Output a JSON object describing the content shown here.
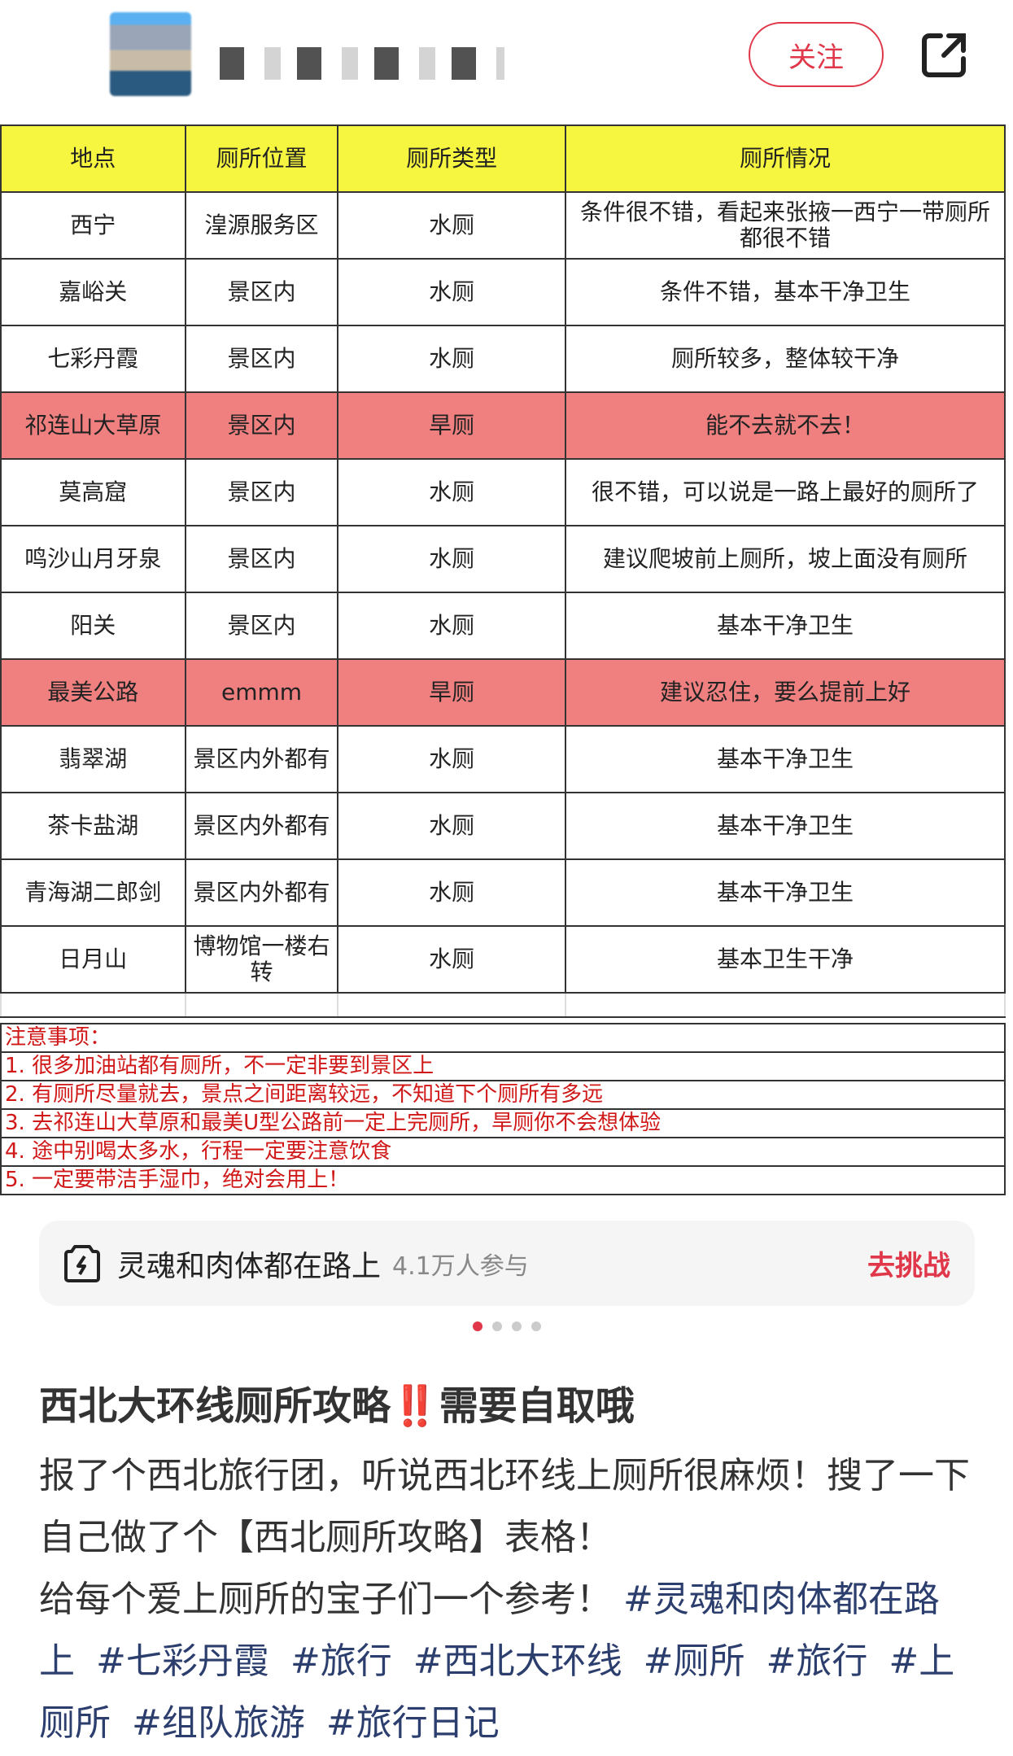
{
  "header": {
    "follow_label": "关注",
    "avatar_icon": "avatar-icon",
    "share_icon": "share-icon"
  },
  "table": {
    "headers": [
      "地点",
      "厕所位置",
      "厕所类型",
      "厕所情况"
    ],
    "header_color": "#f6f640",
    "highlight_color": "#f08080",
    "rows": [
      {
        "place": "西宁",
        "location": "湟源服务区",
        "type": "水厕",
        "condition": "条件很不错，看起来张掖一西宁一带厕所都很不错",
        "highlight": false
      },
      {
        "place": "嘉峪关",
        "location": "景区内",
        "type": "水厕",
        "condition": "条件不错，基本干净卫生",
        "highlight": false
      },
      {
        "place": "七彩丹霞",
        "location": "景区内",
        "type": "水厕",
        "condition": "厕所较多，整体较干净",
        "highlight": false
      },
      {
        "place": "祁连山大草原",
        "location": "景区内",
        "type": "旱厕",
        "condition": "能不去就不去！",
        "highlight": true
      },
      {
        "place": "莫高窟",
        "location": "景区内",
        "type": "水厕",
        "condition": "很不错，可以说是一路上最好的厕所了",
        "highlight": false
      },
      {
        "place": "鸣沙山月牙泉",
        "location": "景区内",
        "type": "水厕",
        "condition": "建议爬坡前上厕所，坡上面没有厕所",
        "highlight": false
      },
      {
        "place": "阳关",
        "location": "景区内",
        "type": "水厕",
        "condition": "基本干净卫生",
        "highlight": false
      },
      {
        "place": "最美公路",
        "location": "emmm",
        "type": "旱厕",
        "condition": "建议忍住，要么提前上好",
        "highlight": true
      },
      {
        "place": "翡翠湖",
        "location": "景区内外都有",
        "type": "水厕",
        "condition": "基本干净卫生",
        "highlight": false
      },
      {
        "place": "茶卡盐湖",
        "location": "景区内外都有",
        "type": "水厕",
        "condition": "基本干净卫生",
        "highlight": false
      },
      {
        "place": "青海湖二郎剑",
        "location": "景区内外都有",
        "type": "水厕",
        "condition": "基本干净卫生",
        "highlight": false
      },
      {
        "place": "日月山",
        "location": "博物馆一楼右转",
        "type": "水厕",
        "condition": "基本卫生干净",
        "highlight": false
      }
    ]
  },
  "notes": [
    "注意事项：",
    "1. 很多加油站都有厕所，不一定非要到景区上",
    "2. 有厕所尽量就去，景点之间距离较远，不知道下个厕所有多远",
    "3. 去祁连山大草原和最美U型公路前一定上完厕所，旱厕你不会想体验",
    "4. 途中别喝太多水，行程一定要注意饮食",
    "5. 一定要带洁手湿巾，绝对会用上！"
  ],
  "challenge": {
    "icon": "lightning-badge-icon",
    "name": "灵魂和肉体都在路上",
    "participants": "4.1万人参与",
    "action": "去挑战"
  },
  "carousel": {
    "count": 4,
    "active": 0
  },
  "post": {
    "title_before": "西北大环线厕所攻略",
    "title_emoji": "‼️",
    "title_after": "需要自取哦",
    "body": "报了个西北旅行团，听说西北环线上厕所很麻烦！搜了一下自己做了个【西北厕所攻略】表格！",
    "body2": "给每个爱上厕所的宝子们一个参考！",
    "tags": [
      "#灵魂和肉体都在路上",
      "#七彩丹霞",
      "#旅行",
      "#西北大环线",
      "#厕所",
      "#旅行",
      "#上厕所",
      "#组队旅游",
      "#旅行日记"
    ]
  }
}
